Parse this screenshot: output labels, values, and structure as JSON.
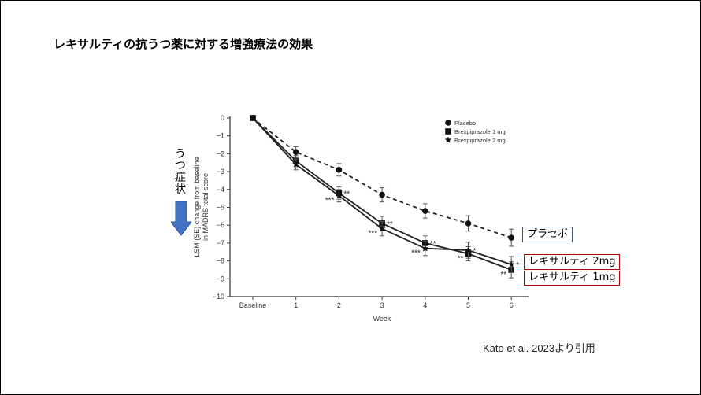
{
  "slide": {
    "title": "レキサルティの抗うつ薬に対する増強療法の効果",
    "citation": "Kato et al. 2023より引用",
    "side_label": "うつ症状",
    "side_arrow_icon": "down-arrow-icon",
    "side_arrow_color": "#4472C4",
    "callouts": [
      {
        "text": "プラセボ",
        "border": "#44546A"
      },
      {
        "text": "レキサルティ 2mg",
        "border": "#C00000"
      },
      {
        "text": "レキサルティ 1mg",
        "border": "#C00000"
      }
    ]
  },
  "chart_data": {
    "type": "line",
    "title": "",
    "xlabel": "Week",
    "ylabel": "LSM (SE) change from baseline in MADRS total score",
    "categories": [
      "Baseline",
      "1",
      "2",
      "3",
      "4",
      "5",
      "6"
    ],
    "ylim": [
      -10,
      0
    ],
    "yticks": [
      0,
      -1,
      -2,
      -3,
      -4,
      -5,
      -6,
      -7,
      -8,
      -9,
      -10
    ],
    "ytick_labels": [
      "0",
      "−1",
      "−2",
      "−3",
      "−4",
      "−5",
      "−6",
      "−7",
      "−8",
      "−9",
      "−10"
    ],
    "grid": false,
    "legend_position": "top-right",
    "series": [
      {
        "name": "Placebo",
        "marker": "circle",
        "dash": true,
        "values": [
          0,
          -1.9,
          -2.9,
          -4.3,
          -5.2,
          -5.9,
          -6.7
        ],
        "se": [
          0,
          0.3,
          0.35,
          0.4,
          0.4,
          0.43,
          0.48
        ]
      },
      {
        "name": "Brexpiprazole 1 mg",
        "marker": "square",
        "dash": false,
        "values": [
          0,
          -2.4,
          -4.2,
          -5.9,
          -7.0,
          -7.6,
          -8.5
        ],
        "se": [
          0,
          0.3,
          0.35,
          0.4,
          0.4,
          0.4,
          0.45
        ]
      },
      {
        "name": "Brexpiprazole 2 mg",
        "marker": "star",
        "dash": false,
        "values": [
          0,
          -2.6,
          -4.35,
          -6.2,
          -7.3,
          -7.4,
          -8.2
        ],
        "se": [
          0,
          0.3,
          0.35,
          0.4,
          0.4,
          0.45,
          0.45
        ]
      }
    ],
    "annotations": [
      {
        "week": "2",
        "text": "**",
        "series": "Brexpiprazole 1 mg",
        "side": "right"
      },
      {
        "week": "2",
        "text": "***",
        "series": "Brexpiprazole 2 mg",
        "side": "left"
      },
      {
        "week": "3",
        "text": "**",
        "series": "Brexpiprazole 1 mg",
        "side": "right"
      },
      {
        "week": "3",
        "text": "***",
        "series": "Brexpiprazole 2 mg",
        "side": "left"
      },
      {
        "week": "4",
        "text": "**",
        "series": "Brexpiprazole 1 mg",
        "side": "right"
      },
      {
        "week": "4",
        "text": "***",
        "series": "Brexpiprazole 2 mg",
        "side": "left"
      },
      {
        "week": "5",
        "text": "*",
        "series": "Brexpiprazole 2 mg",
        "side": "right"
      },
      {
        "week": "5",
        "text": "**",
        "series": "Brexpiprazole 1 mg",
        "side": "left"
      },
      {
        "week": "6",
        "text": "*",
        "series": "Brexpiprazole 2 mg",
        "side": "right"
      },
      {
        "week": "6",
        "text": "**",
        "series": "Brexpiprazole 1 mg",
        "side": "left"
      }
    ]
  }
}
